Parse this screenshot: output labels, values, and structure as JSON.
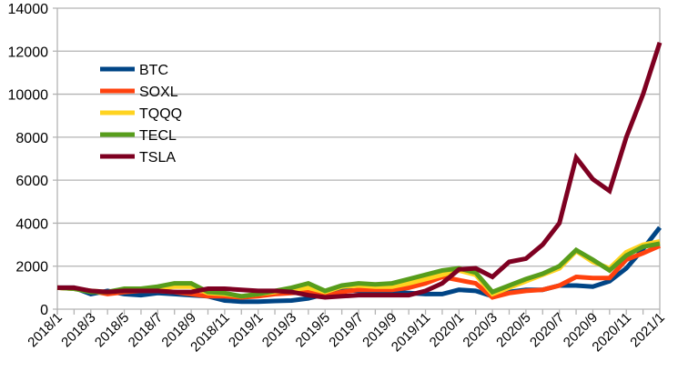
{
  "chart_data": {
    "type": "line",
    "title": "",
    "xlabel": "",
    "ylabel": "",
    "ylim": [
      0,
      14000
    ],
    "yticks": [
      0,
      2000,
      4000,
      6000,
      8000,
      10000,
      12000,
      14000
    ],
    "grid": true,
    "legend_position": "top-left",
    "x": [
      "2018/1",
      "2018/2",
      "2018/3",
      "2018/4",
      "2018/5",
      "2018/6",
      "2018/7",
      "2018/8",
      "2018/9",
      "2018/10",
      "2018/11",
      "2018/12",
      "2019/1",
      "2019/2",
      "2019/3",
      "2019/4",
      "2019/5",
      "2019/6",
      "2019/7",
      "2019/8",
      "2019/9",
      "2019/10",
      "2019/11",
      "2019/12",
      "2020/1",
      "2020/2",
      "2020/3",
      "2020/4",
      "2020/5",
      "2020/6",
      "2020/7",
      "2020/8",
      "2020/9",
      "2020/10",
      "2020/11",
      "2020/12",
      "2021/1"
    ],
    "xtick_labels": [
      "2018/1",
      "2018/3",
      "2018/5",
      "2018/7",
      "2018/9",
      "2018/11",
      "2019/1",
      "2019/3",
      "2019/5",
      "2019/7",
      "2019/9",
      "2019/11",
      "2020/1",
      "2020/3",
      "2020/5",
      "2020/7",
      "2020/9",
      "2020/11",
      "2021/1"
    ],
    "series": [
      {
        "name": "BTC",
        "color": "#004586",
        "values": [
          1000,
          1000,
          700,
          850,
          700,
          650,
          750,
          700,
          650,
          600,
          400,
          350,
          350,
          380,
          400,
          500,
          700,
          900,
          850,
          800,
          800,
          750,
          700,
          700,
          900,
          850,
          600,
          800,
          900,
          900,
          1100,
          1100,
          1050,
          1300,
          1900,
          2800,
          3800
        ]
      },
      {
        "name": "SOXL",
        "color": "#ff420e",
        "values": [
          1000,
          950,
          850,
          700,
          800,
          850,
          850,
          800,
          700,
          600,
          600,
          550,
          600,
          700,
          750,
          800,
          600,
          800,
          900,
          900,
          900,
          1000,
          1200,
          1500,
          1350,
          1200,
          550,
          750,
          850,
          900,
          1100,
          1500,
          1450,
          1450,
          2300,
          2600,
          2950
        ]
      },
      {
        "name": "TQQQ",
        "color": "#ffd320",
        "values": [
          1000,
          950,
          850,
          800,
          850,
          900,
          1000,
          1050,
          1050,
          750,
          700,
          600,
          700,
          800,
          900,
          1000,
          800,
          1050,
          1100,
          1050,
          1050,
          1200,
          1400,
          1600,
          1800,
          1600,
          700,
          1000,
          1300,
          1600,
          1900,
          2700,
          2200,
          1900,
          2650,
          3000,
          3150
        ]
      },
      {
        "name": "TECL",
        "color": "#579d1c",
        "values": [
          1000,
          950,
          800,
          800,
          950,
          950,
          1050,
          1200,
          1200,
          800,
          750,
          600,
          700,
          850,
          1000,
          1200,
          850,
          1100,
          1200,
          1150,
          1200,
          1400,
          1600,
          1800,
          1900,
          1700,
          800,
          1100,
          1400,
          1650,
          2000,
          2750,
          2300,
          1800,
          2500,
          2900,
          3050
        ]
      },
      {
        "name": "TSLA",
        "color": "#7e0021",
        "values": [
          1000,
          1000,
          850,
          800,
          850,
          850,
          850,
          800,
          800,
          950,
          950,
          900,
          850,
          850,
          800,
          650,
          550,
          600,
          650,
          650,
          650,
          650,
          850,
          1200,
          1850,
          1900,
          1500,
          2200,
          2350,
          3000,
          4000,
          7050,
          6050,
          5500,
          8000,
          10000,
          12400
        ]
      }
    ]
  }
}
